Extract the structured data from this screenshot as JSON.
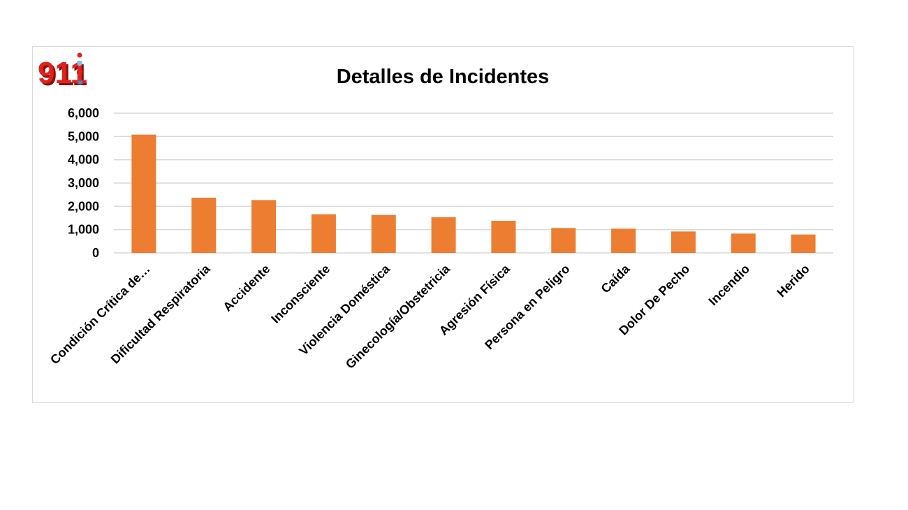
{
  "logo": {
    "text": "911",
    "color": "#e3211c",
    "shadow": "#8a0f0c"
  },
  "colors": {
    "bar": "#ed7d31",
    "grid": "#d9d9d9",
    "frame": "#d9d9d9"
  },
  "chart_data": {
    "type": "bar",
    "title": "Detalles de Incidentes",
    "xlabel": "",
    "ylabel": "",
    "ylim": [
      0,
      6000
    ],
    "yticks": [
      "0",
      "1,000",
      "2,000",
      "3,000",
      "4,000",
      "5,000",
      "6,000"
    ],
    "grid": true,
    "legend": "none",
    "categories": [
      "Condición Crítica de…",
      "Dificultad Respiratoria",
      "Accidente",
      "Inconsciente",
      "Violencia Doméstica",
      "Ginecología/Obstetricia",
      "Agresión Física",
      "Persona en Peligro",
      "Caída",
      "Dolor De Pecho",
      "Incendio",
      "Herido"
    ],
    "values": [
      5080,
      2370,
      2270,
      1660,
      1630,
      1530,
      1380,
      1070,
      1040,
      920,
      830,
      790
    ]
  }
}
